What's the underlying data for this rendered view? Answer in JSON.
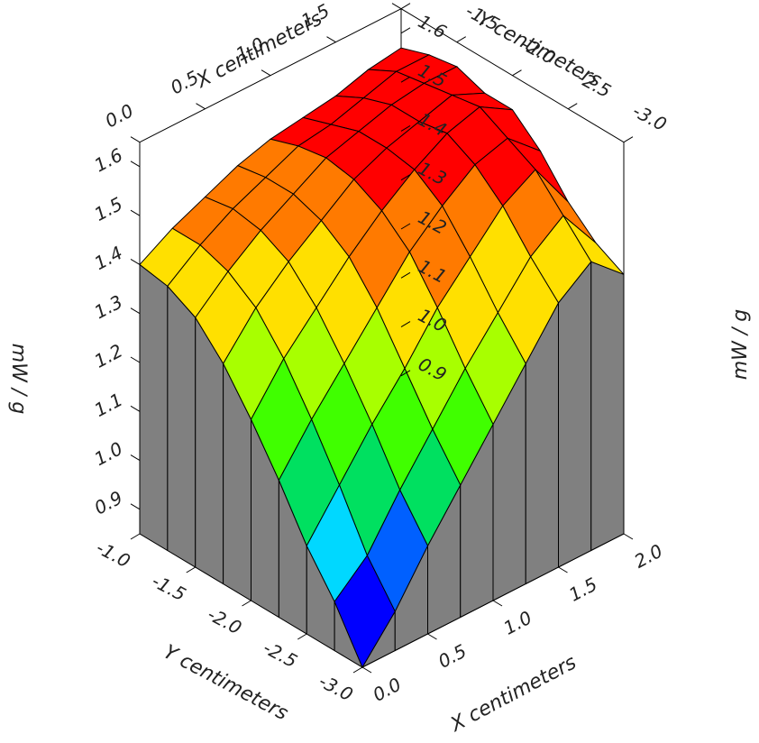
{
  "chart_data": {
    "type": "surface",
    "title": "",
    "x_axis": {
      "label": "X centimeters",
      "ticks": [
        "0.0",
        "0.5",
        "1.0",
        "1.5",
        "2.0"
      ],
      "range": [
        0.0,
        2.0
      ]
    },
    "y_axis": {
      "label": "Y centimeters",
      "ticks": [
        "-1.0",
        "-1.5",
        "-2.0",
        "-2.5",
        "-3.0"
      ],
      "range": [
        -1.0,
        -3.0
      ]
    },
    "z_axis": {
      "label": "mW / g",
      "ticks": [
        "0.9",
        "1.0",
        "1.1",
        "1.2",
        "1.3",
        "1.4",
        "1.5",
        "1.6"
      ],
      "range": [
        0.9,
        1.6
      ]
    },
    "grid_x": [
      0.0,
      0.25,
      0.5,
      0.75,
      1.0,
      1.25,
      1.5,
      1.75,
      2.0
    ],
    "grid_y": [
      -1.0,
      -1.25,
      -1.5,
      -1.75,
      -2.0,
      -2.25,
      -2.5,
      -2.75,
      -3.0
    ],
    "z_values": [
      [
        1.4,
        1.44,
        1.47,
        1.5,
        1.52,
        1.53,
        1.54,
        1.56,
        1.57
      ],
      [
        1.39,
        1.44,
        1.48,
        1.51,
        1.54,
        1.55,
        1.57,
        1.59,
        1.59
      ],
      [
        1.36,
        1.42,
        1.47,
        1.51,
        1.55,
        1.57,
        1.59,
        1.6,
        1.6
      ],
      [
        1.3,
        1.38,
        1.44,
        1.49,
        1.54,
        1.57,
        1.59,
        1.61,
        1.58
      ],
      [
        1.22,
        1.31,
        1.38,
        1.45,
        1.51,
        1.56,
        1.6,
        1.62,
        1.58
      ],
      [
        1.13,
        1.22,
        1.3,
        1.38,
        1.46,
        1.52,
        1.57,
        1.59,
        1.53
      ],
      [
        1.03,
        1.12,
        1.21,
        1.29,
        1.38,
        1.45,
        1.52,
        1.56,
        1.46
      ],
      [
        0.95,
        1.01,
        1.11,
        1.2,
        1.29,
        1.37,
        1.45,
        1.5,
        1.41
      ],
      [
        0.85,
        0.93,
        1.03,
        1.12,
        1.21,
        1.3,
        1.39,
        1.44,
        1.38
      ]
    ],
    "color_scale": [
      "#0000ff",
      "#0060ff",
      "#00d8ff",
      "#00e060",
      "#40ff00",
      "#a8ff00",
      "#ffe000",
      "#ff7a00",
      "#ff0000"
    ],
    "wall_color": "#808080",
    "box_corner_labels": [
      "0.0",
      "2.0"
    ]
  }
}
